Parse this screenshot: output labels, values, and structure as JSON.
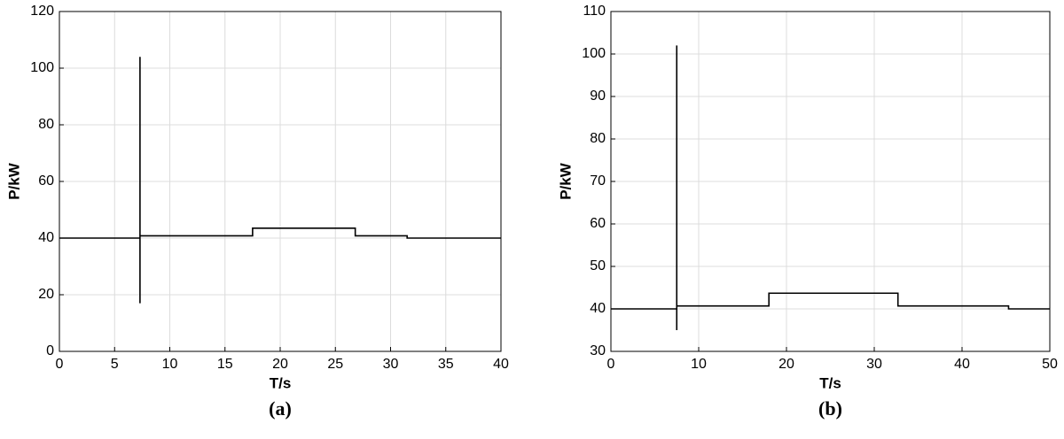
{
  "chart_data": [
    {
      "type": "line",
      "caption": "(a)",
      "xlabel": "T/s",
      "ylabel": "P/kW",
      "color": "#000000",
      "grid": true,
      "x": [
        0,
        7.3,
        7.3,
        7.3,
        7.3,
        17.5,
        17.5,
        26.8,
        26.8,
        31.5,
        31.5,
        40
      ],
      "values": [
        40,
        40,
        104,
        17,
        40.8,
        40.8,
        43.5,
        43.5,
        40.8,
        40.8,
        40,
        40
      ],
      "xlim": [
        0,
        40
      ],
      "xticks": [
        0,
        5,
        10,
        15,
        20,
        25,
        30,
        35,
        40
      ],
      "ylim": [
        0,
        120
      ],
      "yticks": [
        0,
        20,
        40,
        60,
        80,
        100,
        120
      ]
    },
    {
      "type": "line",
      "caption": "(b)",
      "xlabel": "T/s",
      "ylabel": "P/kW",
      "color": "#000000",
      "grid": true,
      "x": [
        0,
        7.5,
        7.5,
        7.5,
        7.5,
        18,
        18,
        32.7,
        32.7,
        45.3,
        45.3,
        50
      ],
      "values": [
        40,
        40,
        102,
        35,
        40.7,
        40.7,
        43.7,
        43.7,
        40.7,
        40.7,
        40,
        40
      ],
      "xlim": [
        0,
        50
      ],
      "xticks": [
        0,
        10,
        20,
        30,
        40,
        50
      ],
      "ylim": [
        30,
        110
      ],
      "yticks": [
        30,
        40,
        50,
        60,
        70,
        80,
        90,
        100,
        110
      ]
    }
  ]
}
